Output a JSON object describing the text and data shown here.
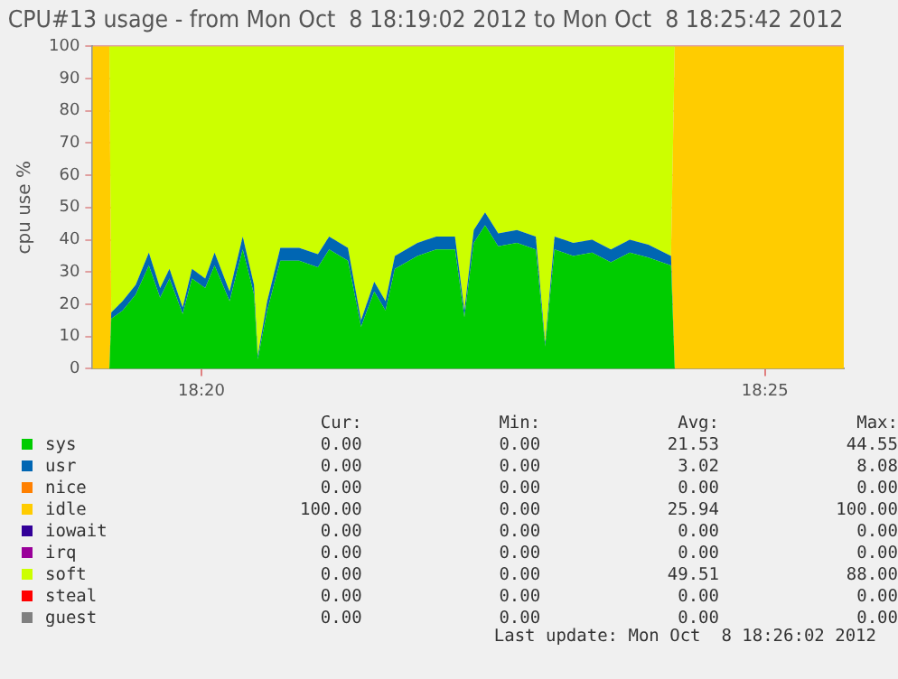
{
  "chart_data": {
    "type": "area",
    "stacked": true,
    "title": "CPU#13 usage - from Mon Oct  8 18:19:02 2012 to Mon Oct  8 18:25:42 2012",
    "ylabel": "cpu use %",
    "x": [
      18.31722,
      18.31972,
      18.32,
      18.32167,
      18.32361,
      18.32556,
      18.32722,
      18.32861,
      18.33056,
      18.33194,
      18.33389,
      18.33528,
      18.3375,
      18.33944,
      18.34111,
      18.34167,
      18.34306,
      18.345,
      18.34778,
      18.35056,
      18.35222,
      18.355,
      18.35694,
      18.35889,
      18.36056,
      18.36194,
      18.36528,
      18.36806,
      18.37083,
      18.37222,
      18.37361,
      18.37528,
      18.37722,
      18.38,
      18.38278,
      18.38417,
      18.38556,
      18.38833,
      18.39111,
      18.39389,
      18.39667,
      18.39944,
      18.40278,
      18.40333,
      18.42833
    ],
    "series": [
      {
        "name": "sys",
        "color": "#00cc00",
        "values": [
          0,
          0,
          15.5,
          18,
          23,
          32,
          22,
          28,
          17,
          28,
          25,
          32,
          21,
          37,
          23,
          3,
          18,
          33.5,
          33.5,
          31.5,
          37,
          33.5,
          13,
          24,
          18,
          31,
          35,
          37,
          37,
          16,
          39,
          44.5,
          38,
          39,
          37,
          7,
          37,
          35,
          36,
          33,
          36,
          34.5,
          32,
          0,
          0
        ]
      },
      {
        "name": "usr",
        "color": "#0066b3",
        "values": [
          0,
          0,
          2,
          3,
          3,
          4,
          3,
          3,
          2,
          3,
          3,
          4,
          3,
          4,
          3,
          1,
          3,
          4,
          4,
          4,
          4,
          4,
          2,
          3,
          3,
          4,
          4,
          4,
          4,
          2,
          4,
          4,
          4,
          4,
          4,
          1,
          4,
          4,
          4,
          4,
          4,
          4,
          3,
          0,
          0
        ]
      },
      {
        "name": "nice",
        "color": "#ff8000",
        "values": [
          null,
          null,
          null,
          null,
          null,
          null,
          null,
          null,
          null,
          null,
          null,
          null,
          null,
          null,
          null,
          null,
          null,
          null,
          null,
          null,
          null,
          null,
          null,
          null,
          null,
          null,
          null,
          null,
          null,
          null,
          null,
          null,
          null,
          null,
          null,
          null,
          null,
          null,
          null,
          null,
          null,
          null,
          null,
          null,
          null
        ]
      },
      {
        "name": "idle",
        "color": "#ffcc00",
        "values": [
          100,
          100,
          0,
          0,
          0,
          0,
          0,
          0,
          0,
          0,
          0,
          0,
          0,
          0,
          0,
          0,
          0,
          0,
          0,
          0,
          0,
          0,
          0,
          0,
          0,
          0,
          0,
          0,
          0,
          0,
          0,
          0,
          0,
          0,
          0,
          0,
          0,
          0,
          0,
          0,
          0,
          0,
          0,
          100,
          100
        ]
      },
      {
        "name": "iowait",
        "color": "#330099",
        "values": [
          null,
          null,
          null,
          null,
          null,
          null,
          null,
          null,
          null,
          null,
          null,
          null,
          null,
          null,
          null,
          null,
          null,
          null,
          null,
          null,
          null,
          null,
          null,
          null,
          null,
          null,
          null,
          null,
          null,
          null,
          null,
          null,
          null,
          null,
          null,
          null,
          null,
          null,
          null,
          null,
          null,
          null,
          null,
          null,
          null
        ]
      },
      {
        "name": "irq",
        "color": "#990099",
        "values": [
          null,
          null,
          null,
          null,
          null,
          null,
          null,
          null,
          null,
          null,
          null,
          null,
          null,
          null,
          null,
          null,
          null,
          null,
          null,
          null,
          null,
          null,
          null,
          null,
          null,
          null,
          null,
          null,
          null,
          null,
          null,
          null,
          null,
          null,
          null,
          null,
          null,
          null,
          null,
          null,
          null,
          null,
          null,
          null,
          null
        ]
      },
      {
        "name": "soft",
        "color": "#ccff00",
        "values": [
          0,
          0,
          82.5,
          79,
          74,
          64,
          75,
          69,
          81,
          69,
          72,
          64,
          76,
          59,
          74,
          96,
          79,
          62.5,
          62.5,
          64.5,
          59,
          62.5,
          85,
          73,
          79,
          65,
          61,
          59,
          59,
          82,
          57,
          51.5,
          58,
          57,
          59,
          92,
          59,
          61,
          60,
          63,
          60,
          61.5,
          65,
          0,
          0
        ]
      },
      {
        "name": "steal",
        "color": "#ff0000",
        "values": [
          null,
          null,
          null,
          null,
          null,
          null,
          null,
          null,
          null,
          null,
          null,
          null,
          null,
          null,
          null,
          null,
          null,
          null,
          null,
          null,
          null,
          null,
          null,
          null,
          null,
          null,
          null,
          null,
          null,
          null,
          null,
          null,
          null,
          null,
          null,
          null,
          null,
          null,
          null,
          null,
          null,
          null,
          null,
          null,
          null
        ]
      },
      {
        "name": "guest",
        "color": "#808080",
        "values": [
          null,
          null,
          null,
          null,
          null,
          null,
          null,
          null,
          null,
          null,
          null,
          null,
          null,
          null,
          null,
          null,
          null,
          null,
          null,
          null,
          null,
          null,
          null,
          null,
          null,
          null,
          null,
          null,
          null,
          null,
          null,
          null,
          null,
          null,
          null,
          null,
          null,
          null,
          null,
          null,
          null,
          null,
          null,
          null,
          null
        ]
      }
    ],
    "xlim": [
      18.31722,
      18.42833
    ],
    "xticks": [
      {
        "value": 18.33333,
        "label": "18:20"
      },
      {
        "value": 18.41667,
        "label": "18:25"
      }
    ],
    "ylim": [
      0,
      100
    ],
    "yticks": [
      0,
      10,
      20,
      30,
      40,
      50,
      60,
      70,
      80,
      90,
      100
    ],
    "grid": true,
    "legend": "bottom",
    "annotations": [
      "Cur:",
      "Min:",
      "Avg:",
      "Max:",
      "0.00",
      "0.00",
      "21.53",
      "44.55",
      "0.00",
      "0.00",
      "3.02",
      "8.08",
      "0.00",
      "0.00",
      "0.00",
      "0.00",
      "100.00",
      "0.00",
      "25.94",
      "100.00",
      "0.00",
      "0.00",
      "0.00",
      "0.00",
      "0.00",
      "0.00",
      "0.00",
      "0.00",
      "0.00",
      "0.00",
      "49.51",
      "88.00",
      "0.00",
      "0.00",
      "0.00",
      "0.00",
      "0.00",
      "0.00",
      "0.00",
      "0.00",
      "Last update: Mon Oct  8 18:26:02 2012"
    ]
  }
}
